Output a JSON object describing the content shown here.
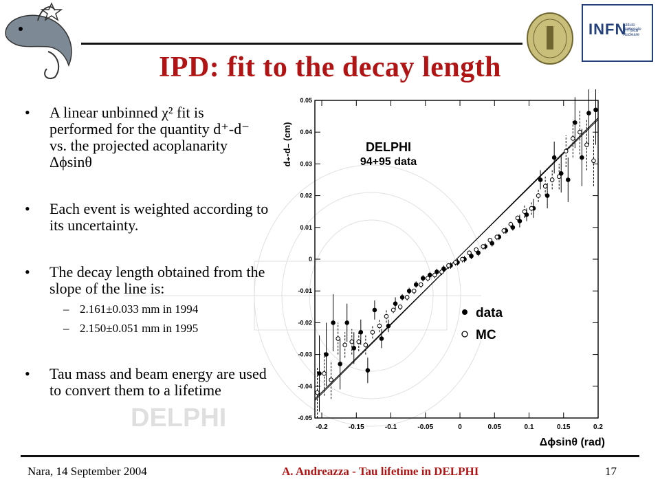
{
  "slide": {
    "title": "IPD: fit to the decay length",
    "bullets": [
      {
        "text": "A linear unbinned χ² fit is performed for the quantity d⁺-d⁻ vs. the projected acoplanarity Δϕsinθ"
      },
      {
        "text": "Each event is weighted according to its uncertainty."
      },
      {
        "text": "The decay length obtained from the slope of the line is:"
      },
      {
        "text": "Tau mass and beam energy are used to convert them to a lifetime"
      }
    ],
    "sub_bullets": [
      {
        "dash": "–",
        "text": "2.161±0.033 mm in 1994"
      },
      {
        "dash": "–",
        "text": "2.150±0.051 mm in 1995"
      }
    ],
    "bullet_glyph": "•",
    "footer": {
      "left": "Nara, 14 September 2004",
      "center": "A. Andreazza - Tau lifetime in DELPHI",
      "right": "17"
    },
    "logos": {
      "infn_text": "INFN",
      "infn_sub1": "Istituto Nazionale",
      "infn_sub2": "di Fisica Nucleare"
    },
    "accent_color": "#b01414",
    "background_watermark_text": "DELPHI"
  },
  "chart_data": {
    "type": "scatter",
    "ylabel": "d₊-d₋ (cm)",
    "xlabel": "Δϕsinθ (rad)",
    "annotation": [
      "DELPHI",
      "94+95 data"
    ],
    "legend": [
      {
        "marker": "filled-circle",
        "label": "data"
      },
      {
        "marker": "open-circle",
        "label": "MC"
      }
    ],
    "legend_placement": "bottom-right",
    "xlim": [
      -0.21,
      0.2
    ],
    "ylim": [
      -0.05,
      0.05
    ],
    "xticks": [
      "-0.2",
      "-0.15",
      "-0.1",
      "-0.05",
      "0",
      "0.05",
      "0.1",
      "0.15",
      "0.2"
    ],
    "yticks": [
      "-0.05",
      "-0.04",
      "-0.03",
      "-0.02",
      "-0.01",
      "0",
      "0.01",
      "0.02",
      "0.03",
      "0.04",
      "0.05"
    ],
    "fit_lines": [
      {
        "name": "data fit",
        "x": [
          -0.21,
          0.2
        ],
        "y": [
          -0.044,
          0.044
        ],
        "style": "solid"
      },
      {
        "name": "MC fit",
        "x": [
          -0.21,
          0.2
        ],
        "y": [
          -0.0445,
          0.0445
        ],
        "style": "solid"
      }
    ],
    "series": [
      {
        "name": "data",
        "marker": "filled",
        "x": [
          -0.205,
          -0.195,
          -0.185,
          -0.175,
          -0.165,
          -0.155,
          -0.145,
          -0.135,
          -0.125,
          -0.115,
          -0.105,
          -0.095,
          -0.085,
          -0.075,
          -0.065,
          -0.055,
          -0.045,
          -0.035,
          -0.025,
          -0.015,
          -0.005,
          0.005,
          0.015,
          0.025,
          0.035,
          0.045,
          0.055,
          0.065,
          0.075,
          0.085,
          0.095,
          0.105,
          0.115,
          0.125,
          0.135,
          0.145,
          0.155,
          0.165,
          0.175,
          0.185,
          0.195
        ],
        "y": [
          -0.036,
          -0.03,
          -0.02,
          -0.033,
          -0.02,
          -0.028,
          -0.023,
          -0.035,
          -0.016,
          -0.025,
          -0.021,
          -0.014,
          -0.012,
          -0.01,
          -0.008,
          -0.006,
          -0.005,
          -0.004,
          -0.003,
          -0.002,
          -0.001,
          0.0,
          0.001,
          0.002,
          0.004,
          0.005,
          0.007,
          0.009,
          0.01,
          0.012,
          0.014,
          0.016,
          0.025,
          0.02,
          0.032,
          0.027,
          0.025,
          0.043,
          0.032,
          0.046,
          0.047
        ],
        "err": [
          0.012,
          0.01,
          0.009,
          0.008,
          0.006,
          0.005,
          0.004,
          0.004,
          0.003,
          0.003,
          0.002,
          0.002,
          0.001,
          0.001,
          0.001,
          0.001,
          0.001,
          0.001,
          0.001,
          0.001,
          0.001,
          0.001,
          0.001,
          0.001,
          0.001,
          0.001,
          0.001,
          0.001,
          0.001,
          0.002,
          0.002,
          0.003,
          0.003,
          0.004,
          0.005,
          0.006,
          0.007,
          0.008,
          0.009,
          0.01,
          0.011
        ]
      },
      {
        "name": "MC",
        "marker": "open",
        "x": [
          -0.205,
          -0.195,
          -0.185,
          -0.175,
          -0.165,
          -0.155,
          -0.145,
          -0.135,
          -0.125,
          -0.115,
          -0.105,
          -0.095,
          -0.085,
          -0.075,
          -0.065,
          -0.055,
          -0.045,
          -0.035,
          -0.025,
          -0.015,
          -0.005,
          0.005,
          0.015,
          0.025,
          0.035,
          0.045,
          0.055,
          0.065,
          0.075,
          0.085,
          0.095,
          0.105,
          0.115,
          0.125,
          0.135,
          0.145,
          0.155,
          0.165,
          0.175,
          0.185,
          0.195
        ],
        "y": [
          -0.042,
          -0.036,
          -0.038,
          -0.025,
          -0.027,
          -0.026,
          -0.026,
          -0.027,
          -0.023,
          -0.021,
          -0.018,
          -0.016,
          -0.015,
          -0.012,
          -0.01,
          -0.008,
          -0.006,
          -0.005,
          -0.004,
          -0.002,
          -0.001,
          0.0,
          0.002,
          0.003,
          0.004,
          0.006,
          0.007,
          0.009,
          0.011,
          0.013,
          0.015,
          0.016,
          0.02,
          0.023,
          0.025,
          0.026,
          0.034,
          0.038,
          0.04,
          0.036,
          0.031
        ],
        "err": [
          0.008,
          0.007,
          0.006,
          0.005,
          0.004,
          0.004,
          0.003,
          0.003,
          0.002,
          0.002,
          0.002,
          0.001,
          0.001,
          0.001,
          0.001,
          0.001,
          0.001,
          0.001,
          0.001,
          0.001,
          0.001,
          0.001,
          0.001,
          0.001,
          0.001,
          0.001,
          0.001,
          0.001,
          0.001,
          0.001,
          0.002,
          0.002,
          0.002,
          0.003,
          0.003,
          0.004,
          0.005,
          0.006,
          0.007,
          0.008,
          0.008
        ]
      }
    ]
  }
}
